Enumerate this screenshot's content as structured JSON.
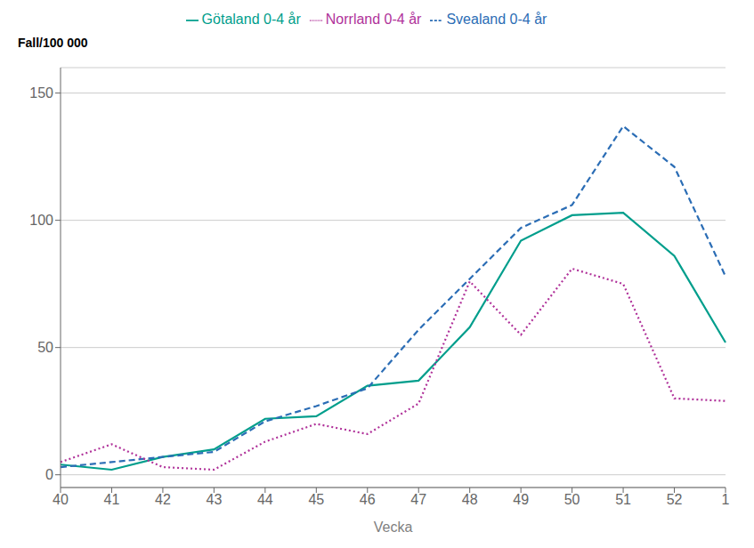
{
  "chart_data": {
    "type": "line",
    "xlabel": "Vecka",
    "ylabel": "Fall/100 000",
    "categories": [
      "40",
      "41",
      "42",
      "43",
      "44",
      "45",
      "46",
      "47",
      "48",
      "49",
      "50",
      "51",
      "52",
      "1"
    ],
    "series": [
      {
        "name": "Götaland 0-4 år",
        "color": "#009E8C",
        "line_style": "solid",
        "values": [
          4,
          2,
          7,
          10,
          22,
          23,
          35,
          37,
          58,
          92,
          102,
          103,
          86,
          52
        ]
      },
      {
        "name": "Svealand 0-4 år",
        "color": "#2B6DB5",
        "line_style": "dashed",
        "values": [
          3,
          5,
          7,
          9,
          21,
          27,
          34,
          57,
          77,
          97,
          106,
          137,
          121,
          78
        ]
      },
      {
        "name": "Norrland 0-4 år",
        "color": "#B0329A",
        "line_style": "dotted",
        "values": [
          5,
          12,
          3,
          2,
          13,
          20,
          16,
          28,
          76,
          55,
          81,
          75,
          30,
          29
        ]
      }
    ],
    "ylim": [
      -5,
      160
    ],
    "yticks": [
      0,
      50,
      100,
      150
    ],
    "grid": true,
    "legend": "top"
  }
}
